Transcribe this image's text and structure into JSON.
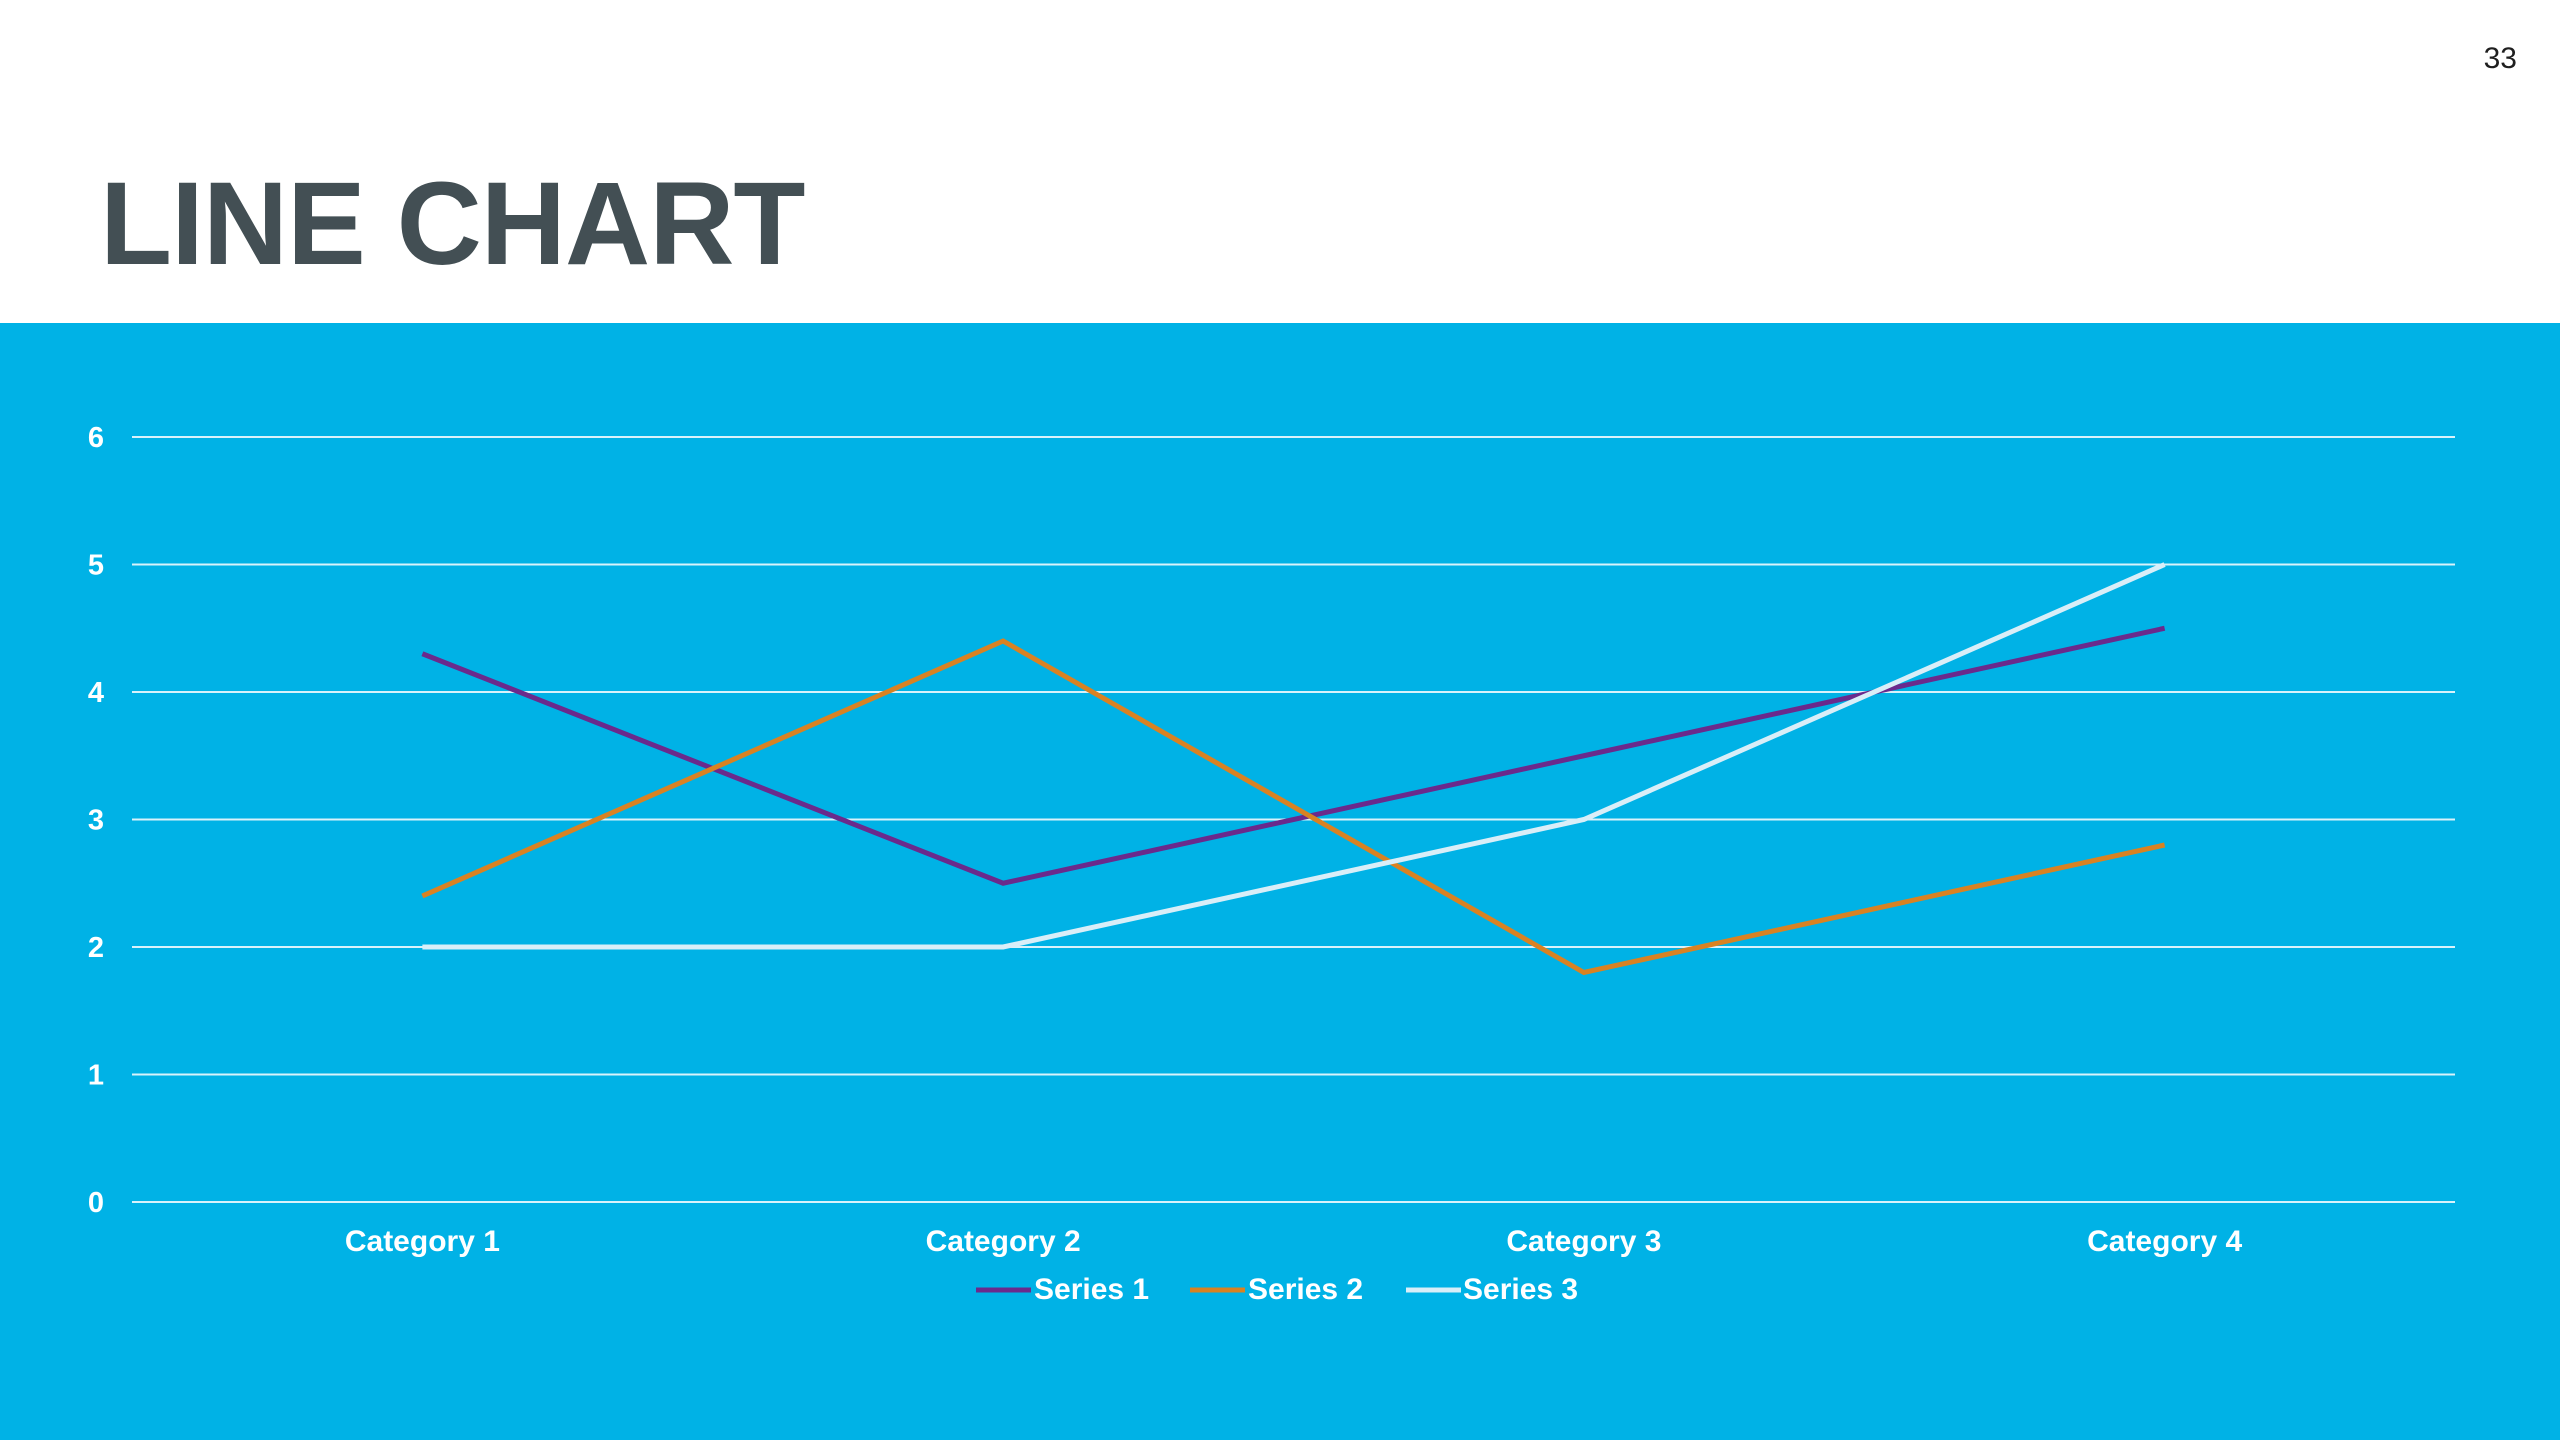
{
  "slide": {
    "page_number": "33",
    "title": "LINE CHART"
  },
  "colors": {
    "panel_background": "#00b2e6",
    "title": "#434f54",
    "gridline": "#d9f2fb",
    "axis_text": "#ffffff"
  },
  "chart_data": {
    "type": "line",
    "title": "",
    "xlabel": "",
    "ylabel": "",
    "categories": [
      "Category 1",
      "Category 2",
      "Category 3",
      "Category 4"
    ],
    "series": [
      {
        "name": "Series 1",
        "color": "#6a2a8c",
        "values": [
          4.3,
          2.5,
          3.5,
          4.5
        ]
      },
      {
        "name": "Series 2",
        "color": "#d98222",
        "values": [
          2.4,
          4.4,
          1.8,
          2.8
        ]
      },
      {
        "name": "Series 3",
        "color": "#d9eef8",
        "values": [
          2,
          2,
          3,
          5
        ]
      }
    ],
    "ylim": [
      0,
      6
    ],
    "yticks": [
      "0",
      "1",
      "2",
      "3",
      "4",
      "5",
      "6"
    ],
    "grid": true,
    "legend_position": "bottom"
  }
}
